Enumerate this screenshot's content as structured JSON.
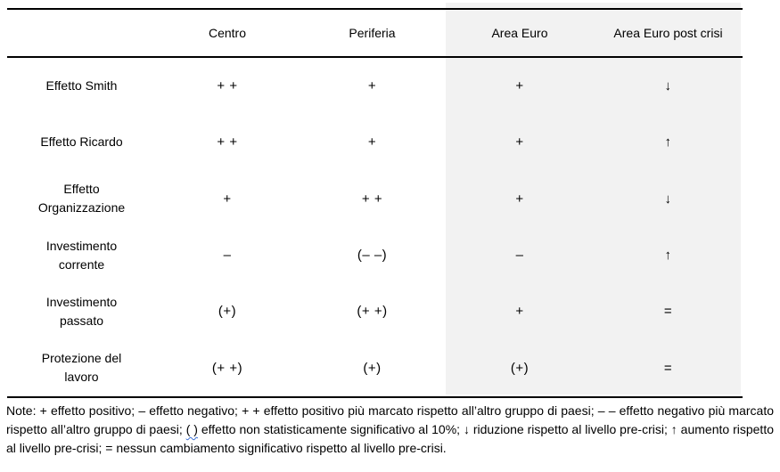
{
  "table": {
    "columns": [
      "",
      "Centro",
      "Periferia",
      "Area Euro",
      "Area Euro post crisi"
    ],
    "highlight_color": "#f2f2f2",
    "rows": [
      {
        "label": "Effetto Smith",
        "values": [
          "+ +",
          "+",
          "+",
          "↓"
        ]
      },
      {
        "label": "Effetto Ricardo",
        "values": [
          "+ +",
          "+",
          "+",
          "↑"
        ]
      },
      {
        "label": "Effetto Organizzazione",
        "values": [
          "+",
          "+ +",
          "+",
          "↓"
        ]
      },
      {
        "label": "Investimento corrente",
        "values": [
          "–",
          "(– –)",
          "–",
          "↑"
        ]
      },
      {
        "label": "Investimento passato",
        "values": [
          "(+)",
          "(+ +)",
          "+",
          "="
        ]
      },
      {
        "label": "Protezione del lavoro",
        "values": [
          "(+ +)",
          "(+)",
          "(+)",
          "="
        ]
      }
    ]
  },
  "notes": {
    "part1": "Note: + effetto positivo; – effetto negativo; + + effetto positivo più marcato rispetto all’altro gruppo di paesi; – – effetto negativo più marcato rispetto all’altro gruppo di paesi; ",
    "underlined": "( )",
    "part2": " effetto non statisticamente significativo al 10%; ↓ riduzione rispetto al livello pre-crisi; ↑ aumento rispetto al livello pre-crisi; = nessun cambiamento significativo rispetto al livello pre-crisi."
  }
}
